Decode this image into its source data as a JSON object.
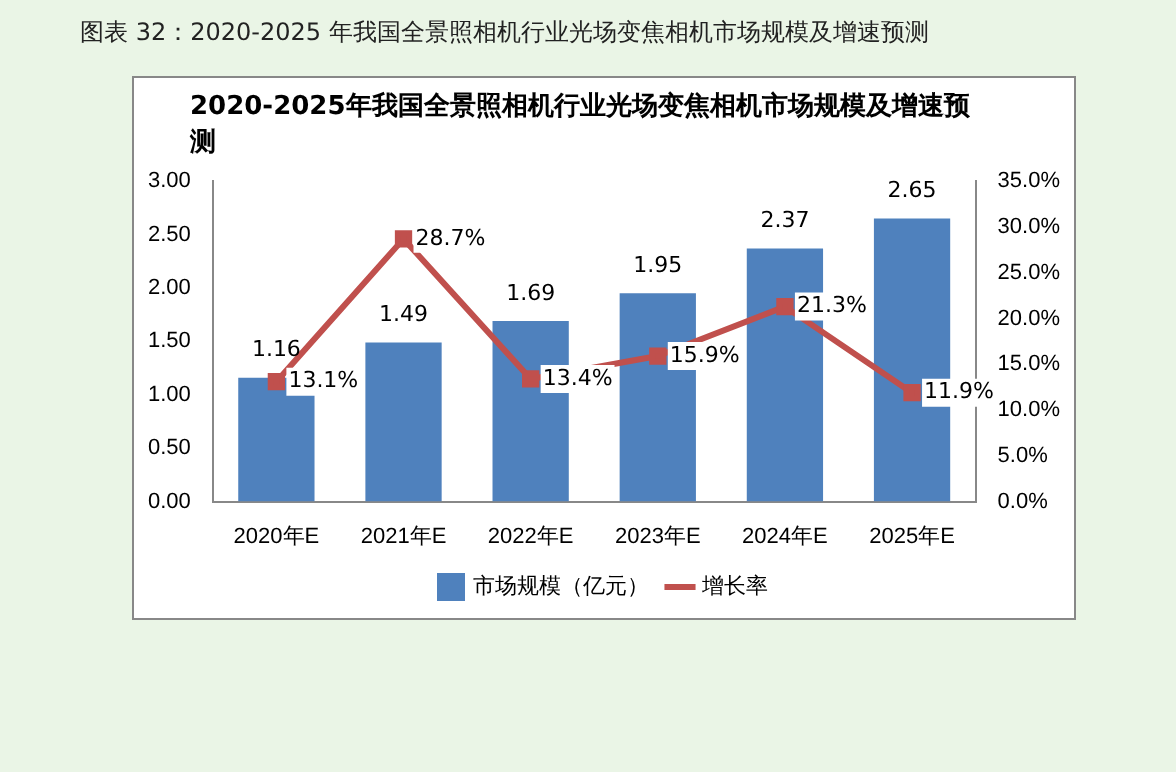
{
  "chart_data": {
    "type": "bar",
    "title": "2020-2025年我国全景照相机行业光场变焦相机市场规模及增速预测",
    "annotations": [
      "图表 32：2020-2025 年我国全景照相机行业光场变焦相机市场规模及增速预测"
    ],
    "categories": [
      "2020年E",
      "2021年E",
      "2022年E",
      "2023年E",
      "2024年E",
      "2025年E"
    ],
    "series": [
      {
        "name": "市场规模（亿元）",
        "color": "#4f81bd",
        "values": [
          1.16,
          1.49,
          1.69,
          1.95,
          2.37,
          2.65
        ],
        "value_labels": [
          "1.16",
          "1.49",
          "1.69",
          "1.95",
          "2.37",
          "2.65"
        ]
      },
      {
        "name": "增长率",
        "type": "line",
        "axis": "y2",
        "color": "#c0504d",
        "marker": "square",
        "values": [
          13.1,
          28.7,
          13.4,
          15.9,
          21.3,
          11.9
        ],
        "value_labels": [
          "13.1%",
          "28.7%",
          "13.4%",
          "15.9%",
          "21.3%",
          "11.9%"
        ]
      }
    ],
    "ylim": [
      0,
      3
    ],
    "yticks": [
      {
        "value": 0,
        "label": "0.00"
      },
      {
        "value": 0.5,
        "label": "0.50"
      },
      {
        "value": 1,
        "label": "1.00"
      },
      {
        "value": 1.5,
        "label": "1.50"
      },
      {
        "value": 2,
        "label": "2.00"
      },
      {
        "value": 2.5,
        "label": "2.50"
      },
      {
        "value": 3,
        "label": "3.00"
      }
    ],
    "y2lim": [
      0,
      35
    ],
    "y2ticks": [
      {
        "value": 0,
        "label": "0.0%"
      },
      {
        "value": 5,
        "label": "5.0%"
      },
      {
        "value": 10,
        "label": "10.0%"
      },
      {
        "value": 15,
        "label": "15.0%"
      },
      {
        "value": 20,
        "label": "20.0%"
      },
      {
        "value": 25,
        "label": "25.0%"
      },
      {
        "value": 30,
        "label": "30.0%"
      },
      {
        "value": 35,
        "label": "35.0%"
      }
    ],
    "grid": false,
    "legend": "bottom"
  }
}
